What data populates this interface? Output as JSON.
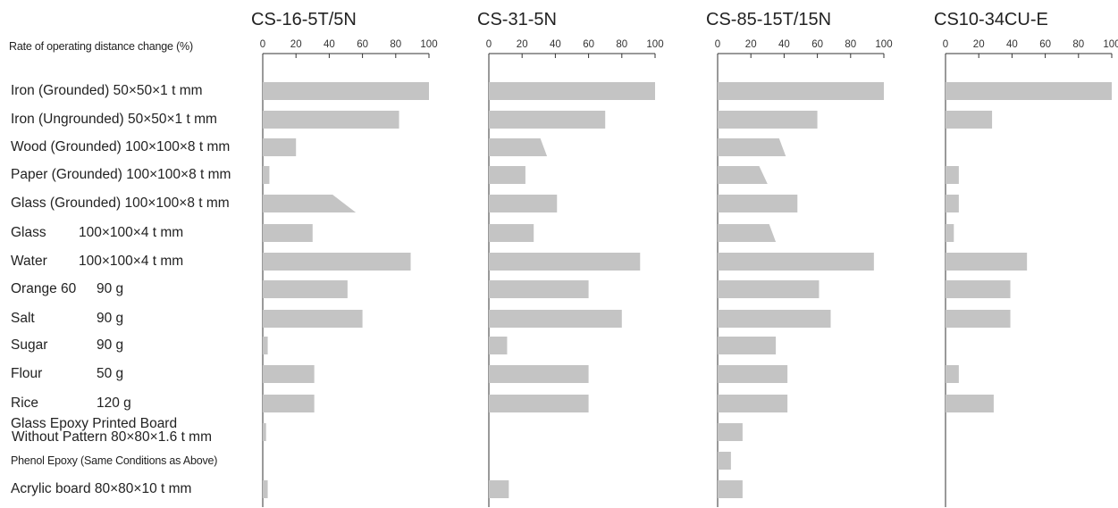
{
  "chart_data": {
    "type": "bar",
    "orientation": "horizontal",
    "axis_label": "Rate of operating distance change (%)",
    "xlim": [
      0,
      100
    ],
    "ticks": [
      "0",
      "20",
      "40",
      "60",
      "80",
      "100"
    ],
    "categories": [
      {
        "name": "Iron (Grounded) 50×50×1 t mm",
        "spec": ""
      },
      {
        "name": "Iron (Ungrounded) 50×50×1 t mm",
        "spec": ""
      },
      {
        "name": "Wood (Grounded) 100×100×8 t mm",
        "spec": ""
      },
      {
        "name": "Paper (Grounded) 100×100×8 t mm",
        "spec": ""
      },
      {
        "name": "Glass (Grounded) 100×100×8 t mm",
        "spec": ""
      },
      {
        "name": "Glass",
        "spec": "100×100×4 t mm"
      },
      {
        "name": "Water",
        "spec": "100×100×4 t mm"
      },
      {
        "name": "Orange 60",
        "spec": "90 g"
      },
      {
        "name": "Salt",
        "spec": "90 g"
      },
      {
        "name": "Sugar",
        "spec": "90 g"
      },
      {
        "name": "Flour",
        "spec": "50 g"
      },
      {
        "name": "Rice",
        "spec": "120 g"
      },
      {
        "name": "Glass Epoxy Printed Board",
        "spec": "Without Pattern 80×80×1.6 t mm"
      },
      {
        "name": "Phenol Epoxy (Same Conditions as Above)",
        "spec": ""
      },
      {
        "name": "Acrylic board 80×80×10 t mm",
        "spec": ""
      }
    ],
    "series": [
      {
        "name": "CS-16-5T/5N",
        "values": [
          100,
          82,
          20,
          4,
          42,
          30,
          89,
          51,
          60,
          3,
          31,
          31,
          2,
          0,
          3
        ],
        "ranges": {
          "4": [
            42,
            56
          ]
        }
      },
      {
        "name": "CS-31-5N",
        "values": [
          100,
          70,
          31,
          22,
          41,
          27,
          91,
          60,
          80,
          11,
          60,
          60,
          0,
          0,
          12
        ],
        "ranges": {
          "2": [
            31,
            35
          ]
        }
      },
      {
        "name": "CS-85-15T/15N",
        "values": [
          100,
          60,
          37,
          25,
          48,
          31,
          94,
          61,
          68,
          35,
          42,
          42,
          15,
          8,
          15
        ],
        "ranges": {
          "2": [
            37,
            41
          ],
          "3": [
            25,
            30
          ],
          "5": [
            31,
            35
          ]
        }
      },
      {
        "name": "CS10-34CU-E",
        "values": [
          100,
          28,
          0,
          8,
          8,
          5,
          49,
          39,
          39,
          0,
          8,
          29,
          0,
          0,
          0
        ],
        "ranges": {}
      }
    ],
    "grid": false,
    "bar_color": "#c4c4c4"
  }
}
